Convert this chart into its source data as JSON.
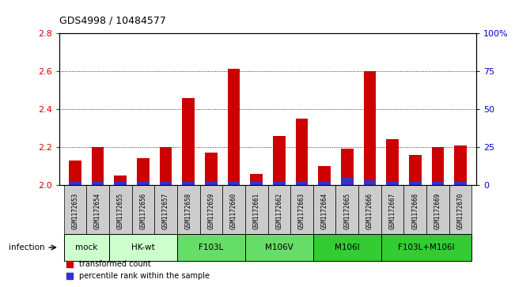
{
  "title": "GDS4998 / 10484577",
  "samples": [
    "GSM1172653",
    "GSM1172654",
    "GSM1172655",
    "GSM1172656",
    "GSM1172657",
    "GSM1172658",
    "GSM1172659",
    "GSM1172660",
    "GSM1172661",
    "GSM1172662",
    "GSM1172663",
    "GSM1172664",
    "GSM1172665",
    "GSM1172666",
    "GSM1172667",
    "GSM1172668",
    "GSM1172669",
    "GSM1172670"
  ],
  "red_values": [
    2.13,
    2.2,
    2.05,
    2.14,
    2.2,
    2.46,
    2.17,
    2.61,
    2.06,
    2.26,
    2.35,
    2.1,
    2.19,
    2.6,
    2.24,
    2.16,
    2.2,
    2.21
  ],
  "blue_values": [
    0.02,
    0.02,
    0.02,
    0.02,
    0.02,
    0.02,
    0.02,
    0.02,
    0.02,
    0.02,
    0.02,
    0.02,
    0.04,
    0.025,
    0.02,
    0.02,
    0.02,
    0.02
  ],
  "ylim": [
    2.0,
    2.8
  ],
  "yticks_left": [
    2.0,
    2.2,
    2.4,
    2.6,
    2.8
  ],
  "yticks_right": [
    0,
    25,
    50,
    75,
    100
  ],
  "ytick_right_labels": [
    "0",
    "25",
    "50",
    "75",
    "100%"
  ],
  "groups": [
    {
      "label": "mock",
      "color": "#ccffcc",
      "start": 0,
      "end": 2
    },
    {
      "label": "HK-wt",
      "color": "#ccffcc",
      "start": 2,
      "end": 5
    },
    {
      "label": "F103L",
      "color": "#66dd66",
      "start": 5,
      "end": 8
    },
    {
      "label": "M106V",
      "color": "#66dd66",
      "start": 8,
      "end": 11
    },
    {
      "label": "M106I",
      "color": "#33cc33",
      "start": 11,
      "end": 14
    },
    {
      "label": "F103L+M106I",
      "color": "#33cc33",
      "start": 14,
      "end": 18
    }
  ],
  "infection_label": "infection",
  "bar_color_red": "#cc0000",
  "bar_color_blue": "#3333cc",
  "bar_width": 0.55,
  "ylabel_color_left": "#cc0000",
  "ylabel_color_right": "#0000cc",
  "bg_color": "white",
  "plot_bg": "white",
  "sample_box_color": "#cccccc",
  "n_samples": 18
}
